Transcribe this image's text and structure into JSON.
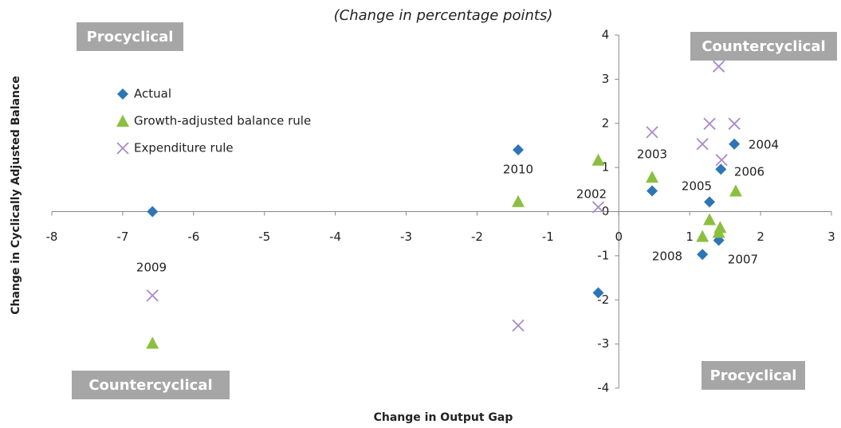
{
  "chart_data": {
    "type": "scatter",
    "title": "(Change in percentage points)",
    "x_label": "Change in Output Gap",
    "y_label": "Change in Cyclically  Adjusted Balance",
    "xlim": [
      -8,
      3
    ],
    "ylim": [
      -4,
      4
    ],
    "xticks": [
      -8,
      -7,
      -6,
      -5,
      -4,
      -3,
      -2,
      -1,
      0,
      1,
      2,
      3
    ],
    "yticks": [
      -4,
      -3,
      -2,
      -1,
      0,
      1,
      2,
      3,
      4
    ],
    "series": [
      {
        "name": "Actual",
        "color": "#2e75b6",
        "marker": "diamond",
        "x": [
          -6.58,
          -1.42,
          -0.29,
          0.47,
          1.28,
          1.44,
          1.63,
          1.18,
          1.41
        ],
        "y": [
          0,
          1.4,
          -1.84,
          0.47,
          0.22,
          0.96,
          1.53,
          -0.97,
          -0.65
        ]
      },
      {
        "name": "Growth-adjusted balance rule",
        "color": "#8cbf3f",
        "marker": "triangle",
        "x": [
          -6.58,
          -1.42,
          -0.29,
          0.47,
          1.28,
          1.18,
          1.43,
          1.41,
          1.65
        ],
        "y": [
          -2.98,
          0.23,
          1.17,
          0.78,
          -0.18,
          -0.56,
          -0.36,
          -0.47,
          0.47
        ]
      },
      {
        "name": "Expenditure rule",
        "color": "#a98ac9",
        "marker": "x",
        "x": [
          -6.58,
          -1.42,
          -0.29,
          0.47,
          1.28,
          1.18,
          1.41,
          1.45,
          1.63
        ],
        "y": [
          -1.9,
          -2.58,
          0.1,
          1.8,
          1.99,
          1.53,
          3.29,
          1.17,
          1.99
        ]
      }
    ],
    "annotations": [
      "2009",
      "2010",
      "2002",
      "2003",
      "2004",
      "2005",
      "2006",
      "2007",
      "2008"
    ],
    "quadrant_labels": [
      "Procyclical",
      "Countercyclical",
      "Countercyclical",
      "Procyclical"
    ]
  }
}
